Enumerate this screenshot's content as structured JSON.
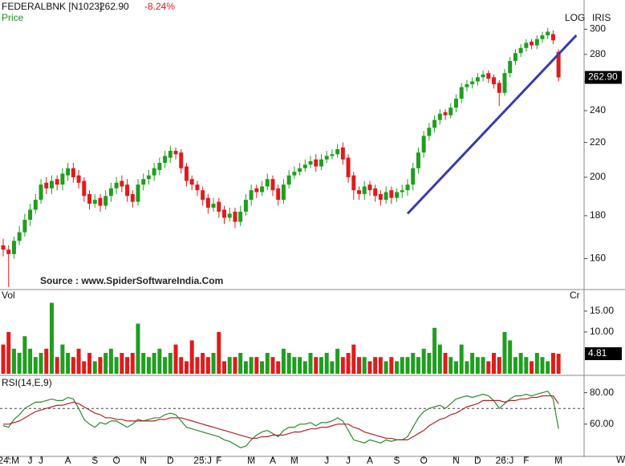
{
  "chart_data": [
    {
      "type": "candlestick",
      "title": "FEDERALBNK [N1023]",
      "subtitle": "Price",
      "last": {
        "value": 262.9,
        "label": "262.90"
      },
      "change": {
        "value": -8.24,
        "label": "-8.24%"
      },
      "scale_label": "LOG",
      "brand": "IRIS",
      "source": "Source : www.SpiderSoftwareIndia.Com",
      "log": true,
      "up_color": "#1f9e1f",
      "down_color": "#e01b1b",
      "ylim": [
        148,
        325
      ],
      "yticks": [
        160,
        180,
        200,
        220,
        240,
        260,
        280,
        300
      ],
      "open": [
        166,
        164,
        162,
        168,
        172,
        178,
        183,
        188,
        197,
        194,
        199,
        196,
        201,
        205,
        201,
        198,
        191,
        186,
        189,
        185,
        190,
        194,
        198,
        196,
        191,
        187,
        196,
        199,
        201,
        204,
        208,
        211,
        215,
        214,
        206,
        199,
        196,
        193,
        189,
        184,
        187,
        183,
        179,
        182,
        177,
        182,
        188,
        194,
        192,
        195,
        199,
        194,
        188,
        196,
        201,
        203,
        205,
        207,
        210,
        206,
        210,
        212,
        213,
        217,
        211,
        201,
        193,
        191,
        196,
        194,
        191,
        188,
        193,
        189,
        192,
        193,
        196,
        205,
        214,
        224,
        229,
        234,
        239,
        237,
        242,
        248,
        256,
        258,
        260,
        263,
        266,
        263,
        259,
        252,
        266,
        275,
        281,
        285,
        290,
        287,
        292,
        295,
        296,
        282
      ],
      "high": [
        169,
        166,
        170,
        175,
        181,
        186,
        191,
        199,
        200,
        201,
        201,
        205,
        208,
        208,
        204,
        200,
        193,
        191,
        191,
        193,
        197,
        200,
        201,
        199,
        193,
        199,
        202,
        204,
        208,
        211,
        215,
        218,
        217,
        216,
        208,
        201,
        198,
        195,
        191,
        189,
        189,
        185,
        184,
        184,
        185,
        191,
        196,
        196,
        198,
        202,
        201,
        196,
        199,
        204,
        206,
        208,
        210,
        212,
        213,
        213,
        215,
        216,
        219,
        220,
        213,
        203,
        195,
        198,
        198,
        196,
        193,
        195,
        195,
        194,
        196,
        199,
        208,
        217,
        227,
        232,
        237,
        241,
        241,
        245,
        251,
        259,
        261,
        263,
        266,
        268,
        268,
        265,
        261,
        269,
        278,
        284,
        288,
        292,
        292,
        295,
        298,
        301,
        299,
        284
      ],
      "low": [
        161,
        148,
        160,
        166,
        170,
        175,
        181,
        186,
        191,
        191,
        193,
        193,
        198,
        197,
        194,
        187,
        183,
        184,
        182,
        183,
        187,
        191,
        192,
        187,
        184,
        185,
        193,
        196,
        198,
        201,
        205,
        208,
        210,
        202,
        195,
        193,
        190,
        185,
        181,
        182,
        179,
        176,
        177,
        174,
        175,
        180,
        185,
        189,
        190,
        193,
        190,
        185,
        186,
        194,
        199,
        201,
        203,
        205,
        203,
        204,
        208,
        210,
        211,
        207,
        197,
        188,
        188,
        188,
        190,
        187,
        185,
        186,
        186,
        187,
        189,
        190,
        193,
        202,
        211,
        221,
        226,
        231,
        234,
        235,
        239,
        245,
        253,
        255,
        257,
        260,
        259,
        255,
        243,
        250,
        263,
        272,
        278,
        282,
        284,
        284,
        289,
        292,
        288,
        260
      ],
      "close": [
        164,
        162,
        168,
        172,
        178,
        183,
        188,
        196,
        194,
        198,
        196,
        202,
        205,
        200,
        197,
        190,
        186,
        188,
        185,
        190,
        194,
        197,
        195,
        190,
        187,
        196,
        199,
        201,
        205,
        208,
        212,
        215,
        213,
        205,
        198,
        196,
        193,
        188,
        184,
        186,
        182,
        179,
        181,
        177,
        182,
        188,
        193,
        192,
        195,
        199,
        193,
        188,
        196,
        201,
        203,
        205,
        207,
        209,
        206,
        210,
        212,
        213,
        216,
        210,
        200,
        193,
        191,
        195,
        193,
        190,
        188,
        192,
        189,
        192,
        193,
        196,
        205,
        214,
        224,
        229,
        234,
        238,
        237,
        242,
        248,
        256,
        258,
        260,
        263,
        265,
        262,
        258,
        252,
        266,
        275,
        281,
        285,
        289,
        287,
        292,
        295,
        298,
        291,
        262.9
      ],
      "trendline": {
        "x": [
          75,
          106.3
        ],
        "y": [
          181,
          295
        ],
        "color": "#3b3ba8"
      }
    },
    {
      "type": "bar",
      "title": "Vol",
      "unit": "Cr",
      "ylim": [
        0,
        19.6
      ],
      "yticks": [
        {
          "value": 15,
          "label": "15.00"
        },
        {
          "value": 10,
          "label": "10.00"
        }
      ],
      "values": [
        7,
        10,
        6,
        5,
        9,
        6,
        4,
        5,
        6,
        17,
        4,
        7,
        5,
        4,
        6,
        3,
        5,
        3,
        4,
        5,
        6,
        4,
        5,
        4,
        5,
        12,
        5,
        4,
        5,
        6,
        4,
        5,
        7,
        4,
        3,
        8,
        4,
        5,
        4,
        5,
        10,
        3,
        4,
        4,
        5,
        3,
        4,
        4,
        3,
        5,
        4,
        3,
        6,
        5,
        4,
        4,
        3,
        5,
        4,
        4,
        5,
        3,
        6,
        4,
        5,
        7,
        4,
        4,
        3,
        4,
        4,
        3,
        4,
        3,
        4,
        4,
        5,
        4,
        6,
        5,
        11,
        7,
        5,
        4,
        3,
        7,
        3,
        5,
        4,
        4,
        3,
        5,
        4,
        10,
        8,
        4,
        5,
        4,
        3,
        5,
        4,
        3,
        5,
        4.81
      ]
    },
    {
      "type": "line",
      "title": "RSI(14,E,9)",
      "xlabel": "Wk",
      "reference_line": 70,
      "ylim": [
        40,
        90
      ],
      "yticks": [
        {
          "value": 80,
          "label": "80.00"
        },
        {
          "value": 60,
          "label": "60.00"
        }
      ],
      "categories": [
        null,
        "24:M",
        null,
        null,
        null,
        "J",
        null,
        "J",
        null,
        null,
        null,
        null,
        "A",
        null,
        null,
        null,
        null,
        "S",
        null,
        null,
        null,
        "O",
        null,
        null,
        null,
        null,
        "N",
        null,
        null,
        null,
        null,
        "D",
        null,
        null,
        null,
        null,
        null,
        "25:J",
        null,
        null,
        "F",
        null,
        null,
        null,
        null,
        null,
        "M",
        null,
        null,
        null,
        "A",
        null,
        null,
        null,
        "M",
        null,
        null,
        null,
        null,
        null,
        "J",
        null,
        null,
        null,
        "J",
        null,
        null,
        null,
        "A",
        null,
        null,
        null,
        null,
        "S",
        null,
        null,
        null,
        null,
        "O",
        null,
        null,
        null,
        null,
        null,
        "N",
        null,
        null,
        null,
        "D",
        null,
        null,
        null,
        null,
        "26:J",
        null,
        null,
        null,
        "F",
        null,
        null,
        null,
        null,
        null,
        "M"
      ],
      "series": [
        {
          "color": "#2a8a2a",
          "values": [
            59,
            58,
            63,
            66,
            70,
            72,
            74,
            74,
            75,
            76,
            75,
            75,
            77,
            76,
            70,
            63,
            60,
            58,
            61,
            60,
            62,
            62,
            60,
            58,
            60,
            63,
            62,
            63,
            64,
            64,
            66,
            67,
            66,
            62,
            58,
            57,
            56,
            55,
            54,
            53,
            52,
            50,
            49,
            47,
            45,
            46,
            50,
            53,
            55,
            56,
            54,
            52,
            56,
            58,
            58,
            60,
            60,
            61,
            59,
            61,
            61,
            62,
            64,
            62,
            56,
            50,
            49,
            48,
            50,
            49,
            48,
            50,
            49,
            50,
            50,
            52,
            58,
            64,
            68,
            70,
            71,
            72,
            70,
            73,
            76,
            77,
            78,
            77,
            78,
            79,
            78,
            75,
            70,
            73,
            76,
            78,
            78,
            79,
            78,
            79,
            80,
            81,
            76,
            57
          ]
        },
        {
          "color": "#b22222",
          "values": [
            60,
            60,
            61,
            62,
            64,
            66,
            68,
            69,
            70,
            71,
            72,
            72,
            73,
            74,
            73,
            71,
            69,
            67,
            66,
            64,
            64,
            63,
            63,
            62,
            62,
            62,
            62,
            62,
            62,
            63,
            63,
            64,
            64,
            64,
            63,
            62,
            61,
            60,
            59,
            58,
            57,
            56,
            55,
            54,
            53,
            52,
            51,
            51,
            52,
            52,
            53,
            53,
            53,
            54,
            55,
            55,
            56,
            57,
            57,
            58,
            58,
            59,
            60,
            60,
            60,
            58,
            57,
            55,
            54,
            53,
            52,
            51,
            51,
            50,
            50,
            50,
            52,
            54,
            56,
            59,
            61,
            63,
            64,
            66,
            67,
            69,
            71,
            72,
            73,
            75,
            75,
            75,
            75,
            74,
            75,
            75,
            76,
            76,
            77,
            77,
            78,
            78,
            78,
            73
          ]
        }
      ]
    }
  ]
}
